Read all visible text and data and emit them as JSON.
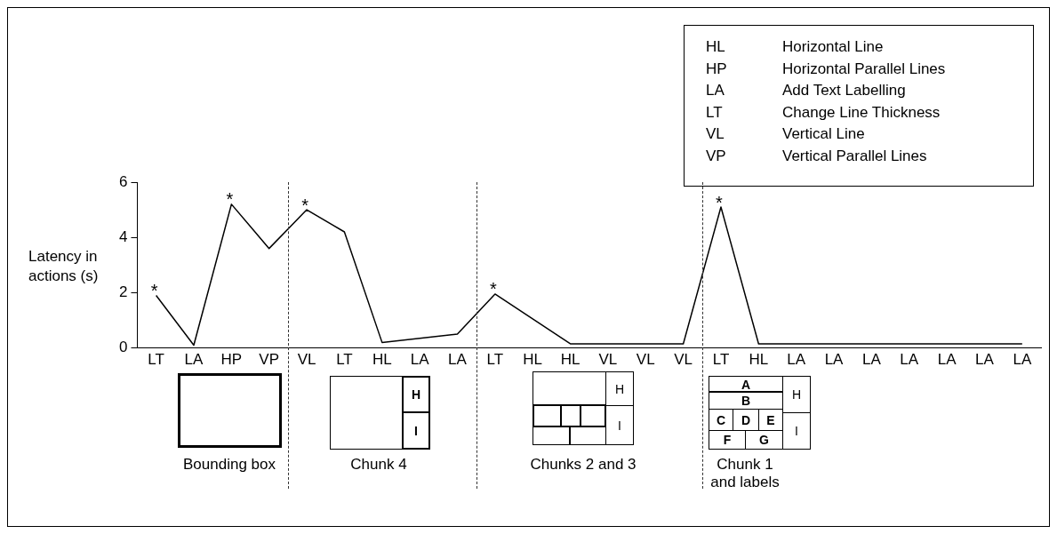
{
  "chart_data": {
    "type": "line",
    "ylabel": "Latency in actions (s)",
    "categories": [
      "LT",
      "LA",
      "HP",
      "VP",
      "VL",
      "LT",
      "HL",
      "LA",
      "LA",
      "LT",
      "HL",
      "HL",
      "VL",
      "VL",
      "VL",
      "LT",
      "HL",
      "LA",
      "LA",
      "LA",
      "LA",
      "LA",
      "LA",
      "LA"
    ],
    "values": [
      1.9,
      0.1,
      5.2,
      3.6,
      5.0,
      4.2,
      0.2,
      0.35,
      0.5,
      1.95,
      1.05,
      0.15,
      0.15,
      0.15,
      0.15,
      5.1,
      0.15,
      0.15,
      0.15,
      0.15,
      0.15,
      0.15,
      0.15,
      0.15
    ],
    "value_labels": [
      "*",
      null,
      "*",
      null,
      "*",
      null,
      null,
      null,
      null,
      "*",
      null,
      null,
      null,
      null,
      null,
      "*",
      null,
      null,
      null,
      null,
      null,
      null,
      null,
      null
    ],
    "color": "#000000",
    "ylim": [
      0,
      6
    ],
    "yticks": [
      0,
      2,
      4,
      6
    ],
    "grid": false,
    "marker": "none",
    "line_style": "solid",
    "annotations": [
      "HL Horizontal Line",
      "HP Horizontal Parallel Lines",
      "LA Add Text Labelling",
      "LT Change Line Thickness",
      "VL Vertical Line",
      "VP Vertical Parallel Lines",
      "Bounding box",
      "Chunk 4",
      "Chunks 2 and 3",
      "Chunk 1 and labels",
      "H",
      "I",
      "H",
      "I",
      "A",
      "B",
      "C",
      "D",
      "E",
      "F",
      "G",
      "H",
      "I"
    ]
  }
}
